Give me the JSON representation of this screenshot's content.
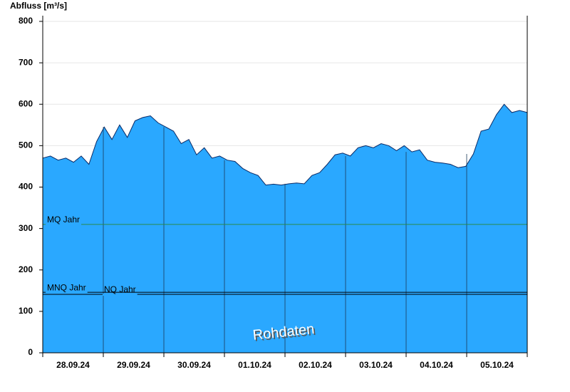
{
  "chart_data": {
    "type": "area",
    "title": "Abfluss [m³/s]",
    "categories": [
      "28.09.24",
      "29.09.24",
      "30.09.24",
      "01.10.24",
      "02.10.24",
      "03.10.24",
      "04.10.24",
      "05.10.24"
    ],
    "values": [
      [
        470,
        475,
        465,
        470,
        460,
        475,
        455,
        510
      ],
      [
        545,
        515,
        550,
        520,
        560,
        568,
        572,
        555
      ],
      [
        545,
        535,
        505,
        515,
        478,
        495,
        470,
        475
      ],
      [
        465,
        462,
        445,
        435,
        428,
        405,
        407,
        405
      ],
      [
        408,
        410,
        408,
        428,
        435,
        455,
        478,
        482
      ],
      [
        475,
        495,
        500,
        495,
        505,
        500,
        488,
        500
      ],
      [
        485,
        490,
        465,
        460,
        458,
        455,
        447,
        450
      ],
      [
        480,
        535,
        540,
        575,
        600,
        580,
        585,
        580
      ]
    ],
    "color": "#2aa8ff",
    "ylim": [
      0,
      800
    ],
    "yticks": [
      0,
      100,
      200,
      300,
      400,
      500,
      600,
      700,
      800
    ],
    "grid": true,
    "reference_lines": [
      {
        "name": "MQ Jahr",
        "value": 310,
        "color": "#2a8a4a"
      },
      {
        "name": "MNQ Jahr",
        "value": 146,
        "color": "#000000"
      },
      {
        "name": "NQ Jahr",
        "value": 141,
        "color": "#000000"
      }
    ],
    "watermark": "Rohdaten"
  }
}
